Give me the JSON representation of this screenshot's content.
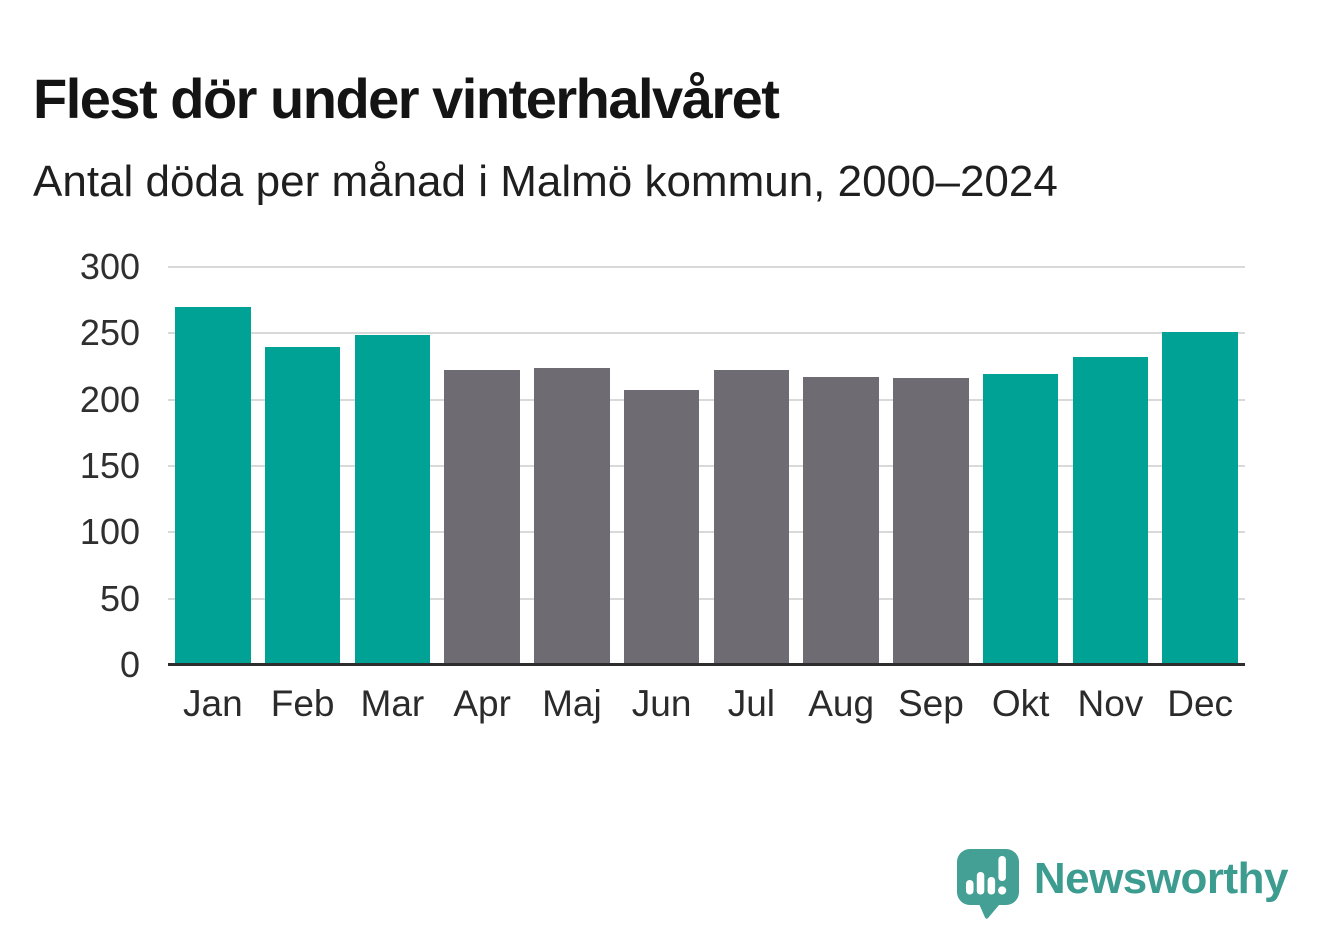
{
  "title": "Flest dör under vinterhalvåret",
  "subtitle": "Antal döda per månad i Malmö kommun, 2000–2024",
  "chart_data": {
    "type": "bar",
    "title": "Flest dör under vinterhalvåret",
    "subtitle": "Antal döda per månad i Malmö kommun, 2000–2024",
    "categories": [
      "Jan",
      "Feb",
      "Mar",
      "Apr",
      "Maj",
      "Jun",
      "Jul",
      "Aug",
      "Sep",
      "Okt",
      "Nov",
      "Dec"
    ],
    "values": [
      270,
      240,
      249,
      222,
      224,
      207,
      222,
      217,
      216,
      219,
      232,
      251
    ],
    "bar_color_keys": [
      "winter",
      "winter",
      "winter",
      "summer",
      "summer",
      "summer",
      "summer",
      "summer",
      "summer",
      "winter",
      "winter",
      "winter"
    ],
    "colors": {
      "winter": "#00a296",
      "summer": "#6e6b72",
      "gridline": "#d9d9d9",
      "axis_line": "#2e2e2e",
      "tick_text": "#2f2f2f"
    },
    "xlabel": "",
    "ylabel": "",
    "ylim": [
      0,
      300
    ],
    "yticks": [
      0,
      50,
      100,
      150,
      200,
      250,
      300
    ],
    "grid": true,
    "legend": false
  },
  "branding": {
    "logo_text": "Newsworthy",
    "logo_icon": "speech-bubble-bar-chart-exclamation",
    "logo_color": "#3d9c90",
    "logo_icon_color": "#44a094"
  }
}
